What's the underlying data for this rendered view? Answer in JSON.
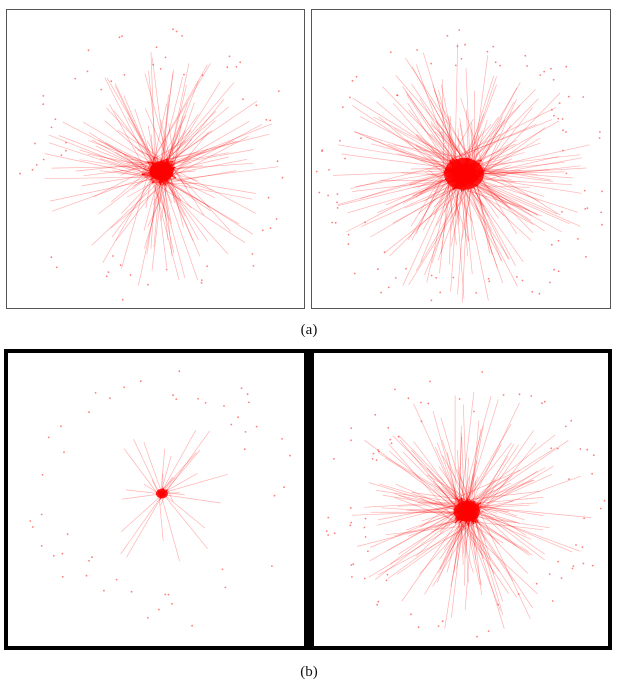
{
  "figure": {
    "caption_a": "(a)",
    "caption_b": "(b)"
  },
  "style": {
    "edge_color": "#ff0000",
    "node_color": "#ff4444",
    "frame_thin_color": "#555555",
    "frame_thick_color": "#000000"
  }
}
